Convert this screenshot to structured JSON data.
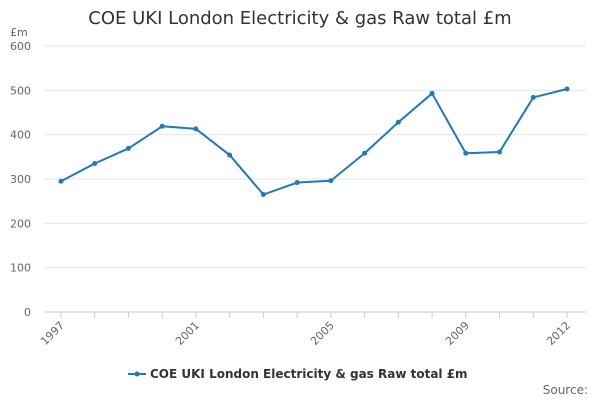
{
  "chart_data": {
    "type": "line",
    "title": "COE UKI London Electricity & gas Raw total £m",
    "ylabel": "£m",
    "xlabel": "",
    "x": [
      1997,
      1998,
      1999,
      2000,
      2001,
      2002,
      2003,
      2004,
      2005,
      2006,
      2007,
      2008,
      2009,
      2010,
      2011,
      2012
    ],
    "x_tick_labels": [
      "1997",
      "2001",
      "2005",
      "2009",
      "2012"
    ],
    "y_tick_labels": [
      "0",
      "100",
      "200",
      "300",
      "400",
      "500",
      "600"
    ],
    "ylim": [
      0,
      600
    ],
    "grid": "horizontal",
    "legend_position": "bottom-center",
    "series": [
      {
        "name": "COE UKI London Electricity & gas Raw total £m",
        "color": "#1f7ab5",
        "values": [
          295,
          335,
          369,
          419,
          413,
          354,
          265,
          292,
          296,
          358,
          428,
          493,
          358,
          361,
          484,
          503
        ]
      }
    ]
  },
  "footer": {
    "source_label": "Source:"
  }
}
